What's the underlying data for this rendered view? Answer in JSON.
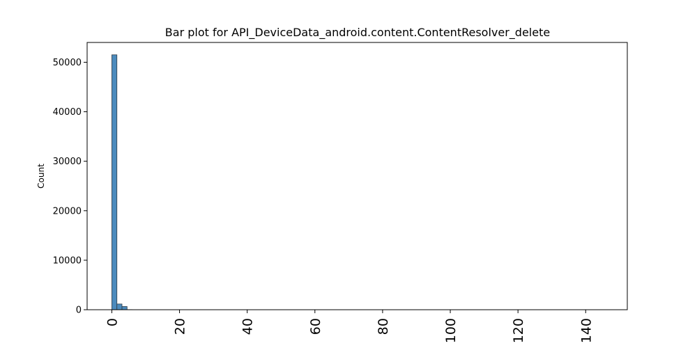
{
  "chart_data": {
    "type": "bar",
    "title": "Bar plot for API_DeviceData_android.content.ContentResolver_delete",
    "xlabel": "",
    "ylabel": "Count",
    "xlim": [
      -7.3,
      152.3
    ],
    "ylim": [
      0,
      54000
    ],
    "grid": false,
    "bar_color": "#4c8bbd",
    "bar_edge_color": "#2f3b45",
    "bins": [
      {
        "x0": 0.0,
        "x1": 1.5,
        "count": 51500
      },
      {
        "x0": 1.5,
        "x1": 3.0,
        "count": 1150
      },
      {
        "x0": 3.0,
        "x1": 4.5,
        "count": 650
      },
      {
        "x0": 4.5,
        "x1": 6.0,
        "count": 20
      },
      {
        "x0": 6.0,
        "x1": 7.5,
        "count": 5
      }
    ],
    "x_ticks": [
      {
        "value": 0,
        "label": "0"
      },
      {
        "value": 20,
        "label": "20"
      },
      {
        "value": 40,
        "label": "40"
      },
      {
        "value": 60,
        "label": "60"
      },
      {
        "value": 80,
        "label": "80"
      },
      {
        "value": 100,
        "label": "100"
      },
      {
        "value": 120,
        "label": "120"
      },
      {
        "value": 140,
        "label": "140"
      }
    ],
    "y_ticks": [
      {
        "value": 0,
        "label": "0"
      },
      {
        "value": 10000,
        "label": "10000"
      },
      {
        "value": 20000,
        "label": "20000"
      },
      {
        "value": 30000,
        "label": "30000"
      },
      {
        "value": 40000,
        "label": "40000"
      },
      {
        "value": 50000,
        "label": "50000"
      }
    ]
  }
}
